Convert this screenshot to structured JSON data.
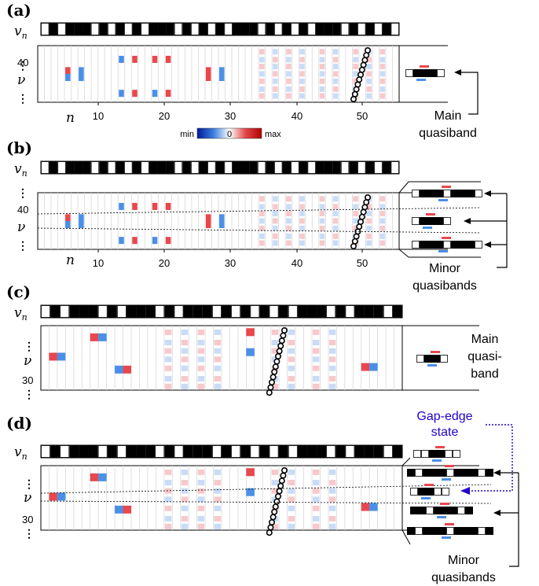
{
  "panels": [
    {
      "id": "a",
      "label": "(a)",
      "row_label": "v",
      "row_label_sub": "n",
      "y_label": "ν",
      "y_tick": "40",
      "y_tick_above": true,
      "x_label": "n",
      "x_ticks": [
        "10",
        "20",
        "30",
        "40",
        "50"
      ],
      "right_caption": [
        "Main",
        "quasiband"
      ],
      "gap_edge": false,
      "bands": 1
    },
    {
      "id": "b",
      "label": "(b)",
      "row_label": "v",
      "row_label_sub": "n",
      "y_label": "ν",
      "y_tick": "40",
      "y_tick_above": true,
      "x_label": "n",
      "x_ticks": [
        "10",
        "20",
        "30",
        "40",
        "50"
      ],
      "right_caption": [
        "Minor",
        "quasibands"
      ],
      "gap_edge": false,
      "bands": 3
    },
    {
      "id": "c",
      "label": "(c)",
      "row_label": "v",
      "row_label_sub": "n",
      "y_label": "ν",
      "y_tick": "30",
      "y_tick_above": false,
      "x_label": "",
      "x_ticks": [],
      "right_caption": [
        "Main",
        "quasi-",
        "band"
      ],
      "gap_edge": false,
      "bands": 1
    },
    {
      "id": "d",
      "label": "(d)",
      "row_label": "v",
      "row_label_sub": "n",
      "y_label": "ν",
      "y_tick": "30",
      "y_tick_above": false,
      "x_label": "",
      "x_ticks": [],
      "right_caption": [
        "Minor",
        "quasibands"
      ],
      "gap_edge": true,
      "bands": 5
    }
  ],
  "colorbar": {
    "min_label": "min",
    "zero_label": "0",
    "max_label": "max",
    "colors": {
      "min": "#0033cc",
      "zero": "#ffffff",
      "max": "#cc0000"
    }
  },
  "gap_edge": {
    "label_line1": "Gap-edge",
    "label_line2": "state",
    "color": "#2200cc"
  },
  "colors": {
    "red": "#e8474d",
    "blue": "#4a8fe8",
    "light_red": "#f7c9cc",
    "light_blue": "#c9dcf7",
    "gridline": "#d8d8d8"
  }
}
